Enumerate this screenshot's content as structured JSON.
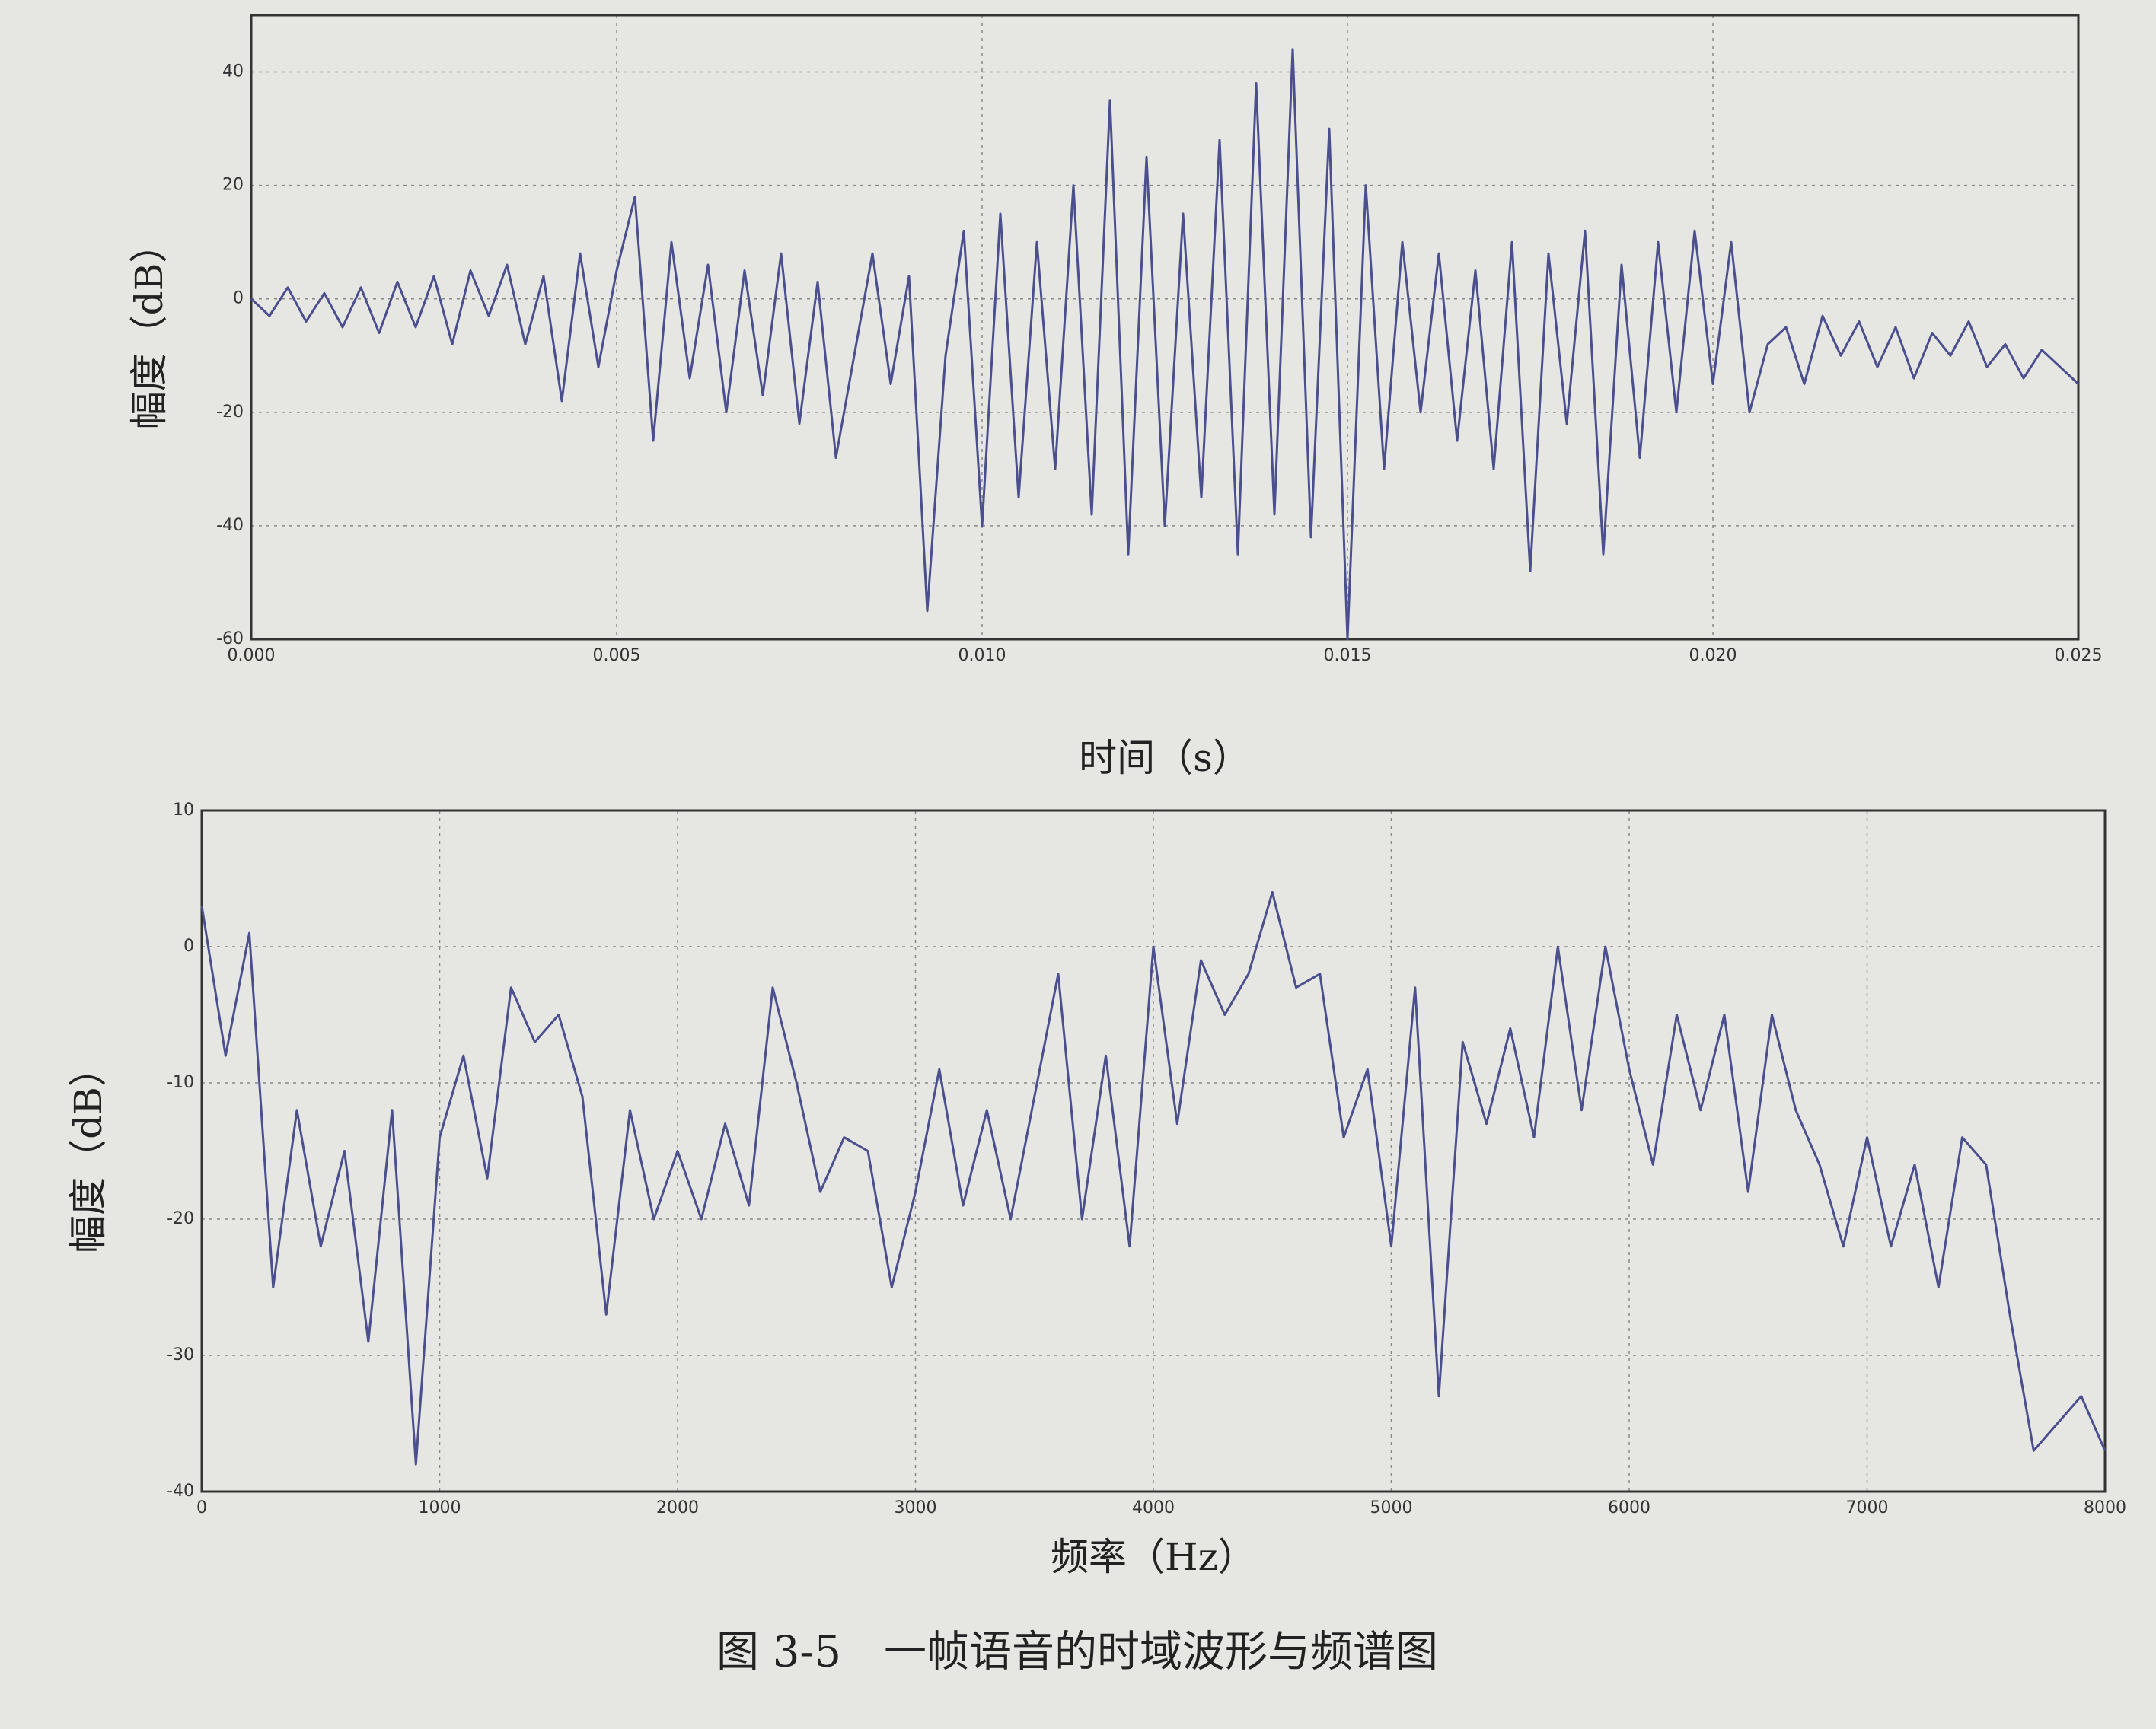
{
  "chart_data": [
    {
      "type": "line",
      "ylabel": "幅度（dB）",
      "xlabel": "时间（s）",
      "grid": true,
      "color": "#4b4f8e",
      "xlim": [
        0,
        0.025
      ],
      "ylim": [
        -60,
        50
      ],
      "xticks": [
        {
          "value": 0,
          "label": "0.000"
        },
        {
          "value": 0.005,
          "label": "0.005"
        },
        {
          "value": 0.01,
          "label": "0.010"
        },
        {
          "value": 0.015,
          "label": "0.015"
        },
        {
          "value": 0.02,
          "label": "0.020"
        },
        {
          "value": 0.025,
          "label": "0.025"
        }
      ],
      "yticks": [
        -60,
        -40,
        -20,
        0,
        20,
        40
      ],
      "x": [
        0,
        0.00025,
        0.0005,
        0.00075,
        0.001,
        0.00125,
        0.0015,
        0.00175,
        0.002,
        0.00225,
        0.0025,
        0.00275,
        0.003,
        0.00325,
        0.0035,
        0.00375,
        0.004,
        0.00425,
        0.0045,
        0.00475,
        0.005,
        0.00525,
        0.0055,
        0.00575,
        0.006,
        0.00625,
        0.0065,
        0.00675,
        0.007,
        0.00725,
        0.0075,
        0.00775,
        0.008,
        0.00825,
        0.0085,
        0.00875,
        0.009,
        0.00925,
        0.0095,
        0.00975,
        0.01,
        0.01025,
        0.0105,
        0.01075,
        0.011,
        0.01125,
        0.0115,
        0.01175,
        0.012,
        0.01225,
        0.0125,
        0.01275,
        0.013,
        0.01325,
        0.0135,
        0.01375,
        0.014,
        0.01425,
        0.0145,
        0.01475,
        0.015,
        0.01525,
        0.0155,
        0.01575,
        0.016,
        0.01625,
        0.0165,
        0.01675,
        0.017,
        0.01725,
        0.0175,
        0.01775,
        0.018,
        0.01825,
        0.0185,
        0.01875,
        0.019,
        0.01925,
        0.0195,
        0.01975,
        0.02,
        0.02025,
        0.0205,
        0.02075,
        0.021,
        0.02125,
        0.0215,
        0.02175,
        0.022,
        0.02225,
        0.0225,
        0.02275,
        0.023,
        0.02325,
        0.0235,
        0.02375,
        0.024,
        0.02425,
        0.0245,
        0.02475,
        0.025
      ],
      "values": [
        0,
        -3,
        2,
        -4,
        1,
        -5,
        2,
        -6,
        3,
        -5,
        4,
        -8,
        5,
        -3,
        6,
        -8,
        4,
        -18,
        8,
        -12,
        5,
        18,
        -25,
        10,
        -14,
        6,
        -20,
        5,
        -17,
        8,
        -22,
        3,
        -28,
        -10,
        8,
        -15,
        4,
        -55,
        -10,
        12,
        -40,
        15,
        -35,
        10,
        -30,
        20,
        -38,
        35,
        -45,
        25,
        -40,
        15,
        -35,
        28,
        -45,
        38,
        -38,
        44,
        -42,
        30,
        -60,
        20,
        -30,
        10,
        -20,
        8,
        -25,
        5,
        -30,
        10,
        -48,
        8,
        -22,
        12,
        -45,
        6,
        -28,
        10,
        -20,
        12,
        -15,
        10,
        -20,
        -8,
        -5,
        -15,
        -3,
        -10,
        -4,
        -12,
        -5,
        -14,
        -6,
        -10,
        -4,
        -12,
        -8,
        -14,
        -9,
        -12,
        -15
      ]
    },
    {
      "type": "line",
      "ylabel": "幅度（dB）",
      "xlabel": "频率（Hz）",
      "grid": true,
      "color": "#4b4f8e",
      "xlim": [
        0,
        8000
      ],
      "ylim": [
        -40,
        10
      ],
      "xticks": [
        0,
        1000,
        2000,
        3000,
        4000,
        5000,
        6000,
        7000,
        8000
      ],
      "yticks": [
        -40,
        -30,
        -20,
        -10,
        0,
        10
      ],
      "x": [
        0,
        100,
        200,
        300,
        400,
        500,
        600,
        700,
        800,
        900,
        1000,
        1100,
        1200,
        1300,
        1400,
        1500,
        1600,
        1700,
        1800,
        1900,
        2000,
        2100,
        2200,
        2300,
        2400,
        2500,
        2600,
        2700,
        2800,
        2900,
        3000,
        3100,
        3200,
        3300,
        3400,
        3500,
        3600,
        3700,
        3800,
        3900,
        4000,
        4100,
        4200,
        4300,
        4400,
        4500,
        4600,
        4700,
        4800,
        4900,
        5000,
        5100,
        5200,
        5300,
        5400,
        5500,
        5600,
        5700,
        5800,
        5900,
        6000,
        6100,
        6200,
        6300,
        6400,
        6500,
        6600,
        6700,
        6800,
        6900,
        7000,
        7100,
        7200,
        7300,
        7400,
        7500,
        7600,
        7700,
        7800,
        7900,
        8000
      ],
      "values": [
        3,
        -8,
        1,
        -25,
        -12,
        -22,
        -15,
        -29,
        -12,
        -38,
        -14,
        -8,
        -17,
        -3,
        -7,
        -5,
        -11,
        -27,
        -12,
        -20,
        -15,
        -20,
        -13,
        -19,
        -3,
        -10,
        -18,
        -14,
        -15,
        -25,
        -18,
        -9,
        -19,
        -12,
        -20,
        -11,
        -2,
        -20,
        -8,
        -22,
        0,
        -13,
        -1,
        -5,
        -2,
        4,
        -3,
        -2,
        -14,
        -9,
        -22,
        -3,
        -33,
        -7,
        -13,
        -6,
        -14,
        0,
        -12,
        0,
        -9,
        -16,
        -5,
        -12,
        -5,
        -18,
        -5,
        -12,
        -16,
        -22,
        -14,
        -22,
        -16,
        -25,
        -14,
        -16,
        -27,
        -37,
        -35,
        -33,
        -37
      ]
    }
  ],
  "caption": "图 3-5　一帧语音的时域波形与频谱图"
}
